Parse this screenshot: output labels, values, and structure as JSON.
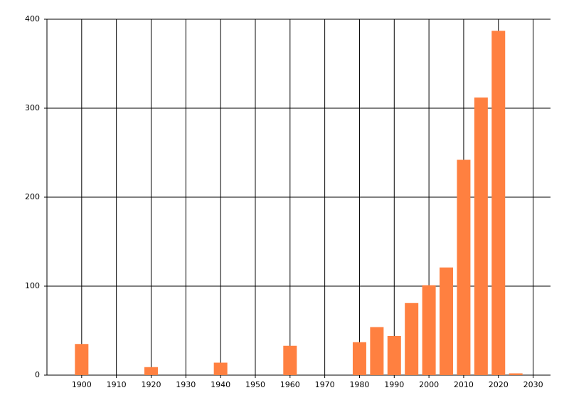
{
  "chart_data": {
    "type": "bar",
    "x": [
      1900,
      1920,
      1940,
      1960,
      1980,
      1985,
      1990,
      1995,
      2000,
      2005,
      2010,
      2015,
      2020,
      2025
    ],
    "values": [
      35,
      9,
      14,
      33,
      37,
      54,
      44,
      81,
      101,
      121,
      242,
      312,
      387,
      2
    ],
    "color": "#ff8040",
    "xlim": [
      1890,
      2035
    ],
    "xticks": [
      1900,
      1910,
      1920,
      1930,
      1940,
      1950,
      1960,
      1970,
      1980,
      1990,
      2000,
      2010,
      2020,
      2030
    ],
    "ylim": [
      0,
      400
    ],
    "yticks": [
      0,
      100,
      200,
      300,
      400
    ],
    "grid": true
  }
}
